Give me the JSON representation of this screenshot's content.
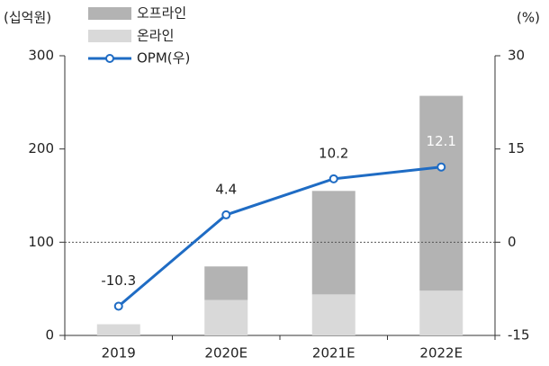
{
  "chart_data": {
    "type": "bar_line",
    "y_label": "(십억원)",
    "y2_label": "(%)",
    "categories": [
      "2019",
      "2020E",
      "2021E",
      "2022E"
    ],
    "series": [
      {
        "name": "온라인",
        "color": "#d9d9d9",
        "values": [
          12,
          38,
          44,
          48
        ]
      },
      {
        "name": "오프라인",
        "color": "#b3b3b3",
        "values": [
          0,
          36,
          111,
          209
        ]
      },
      {
        "name": "OPM(우)",
        "color": "#1f6cc4",
        "axis": "y2",
        "values": [
          -10.3,
          4.4,
          10.2,
          12.1
        ]
      }
    ],
    "ylim": [
      0,
      300
    ],
    "yticks": [
      0,
      100,
      200,
      300
    ],
    "y2lim": [
      -15,
      30
    ],
    "y2ticks": [
      -15,
      0,
      15,
      30
    ]
  }
}
